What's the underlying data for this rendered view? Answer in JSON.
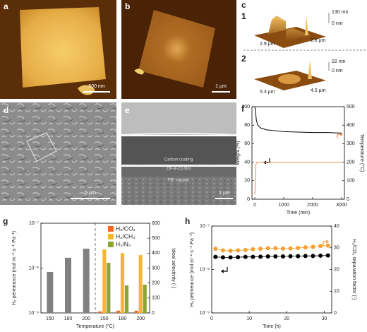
{
  "image_panels": [
    {
      "label": "a",
      "scale_bar": "500 nm"
    },
    {
      "label": "b",
      "scale_bar": "1 µm"
    },
    {
      "label": "c",
      "insets": [
        {
          "number": "1",
          "height_max": "130 nm",
          "height_min": "0 nm",
          "width_x": "2.9 µm",
          "width_y": "2.8 µm"
        },
        {
          "number": "2",
          "height_max": "22 nm",
          "height_min": "0 nm",
          "width_x": "5.3 µm",
          "width_y": "4.5 µm"
        }
      ]
    },
    {
      "label": "d",
      "scale_bar": "5 µm"
    },
    {
      "label": "e",
      "layers": [
        "Carbon coating",
        "ZIF-8-Co film",
        "PBI support"
      ],
      "scale_bar": "1 µm"
    }
  ],
  "chart_data": [
    {
      "type": "line",
      "label": "f",
      "xlabel": "Time (min)",
      "ylabel": "Weight (%)",
      "y2label": "Temperature (°C)",
      "xlim": [
        -100,
        3100
      ],
      "xticks": [
        0,
        1000,
        2000,
        3000
      ],
      "ylim": [
        0,
        100
      ],
      "yticks": [
        0,
        20,
        40,
        60,
        80,
        100
      ],
      "y2lim": [
        0,
        500
      ],
      "y2ticks": [
        0,
        100,
        200,
        300,
        400,
        500
      ],
      "series": [
        {
          "color": "#000000",
          "x": [
            0,
            20,
            50,
            100,
            200,
            400,
            700,
            1000,
            1500,
            2000,
            2500,
            3000
          ],
          "values": [
            100,
            96,
            86,
            80,
            77,
            75,
            74,
            73,
            72.5,
            72,
            72,
            71.5
          ]
        },
        {
          "color": "#f08a4b",
          "axis": "y2",
          "x": [
            0,
            40,
            60,
            3000
          ],
          "values": [
            25,
            190,
            200,
            200
          ]
        }
      ]
    },
    {
      "type": "bar",
      "label": "g",
      "xlabel": "Temperature (°C)",
      "ylabel": "H₂ permeance (mol m⁻²·s⁻¹·Pa⁻¹)",
      "y2label": "Ideal selectivity (-)",
      "categories": [
        "150",
        "180",
        "200",
        "150",
        "180",
        "200"
      ],
      "ylog": true,
      "ylim": [
        1e-09,
        1e-07
      ],
      "yticks": [
        {
          "value": 1e-09,
          "label": "10⁻⁹"
        },
        {
          "value": 1e-08,
          "label": "10⁻⁸"
        },
        {
          "value": 1e-07,
          "label": "10⁻⁷"
        }
      ],
      "y2lim": [
        0,
        600
      ],
      "y2ticks": [
        0,
        100,
        200,
        300,
        400,
        500,
        600
      ],
      "values": [
        8.2e-09,
        1.7e-08,
        2.7e-08,
        null,
        null,
        null
      ],
      "color": "#808080",
      "series": [
        {
          "name": "H₂/CO₂",
          "color": "#f06a1e",
          "axis": "y2",
          "values": [
            null,
            null,
            null,
            10,
            15,
            15
          ]
        },
        {
          "name": "H₂/CH₄",
          "color": "#f5b632",
          "axis": "y2",
          "values": [
            null,
            null,
            null,
            425,
            400,
            387
          ]
        },
        {
          "name": "H₂/N₂",
          "color": "#8aa62c",
          "axis": "y2",
          "values": [
            null,
            null,
            null,
            335,
            184,
            189
          ]
        }
      ]
    },
    {
      "type": "scatter",
      "label": "h",
      "xlabel": "Time (h)",
      "ylabel": "H₂ permeance (mol m⁻²·s⁻¹·Pa⁻¹)",
      "y2label": "H₂/CO₂ separation factor (-)",
      "x": [
        1,
        3,
        5,
        7,
        9,
        11,
        13,
        15,
        17,
        19,
        21,
        23,
        25,
        27,
        29,
        31
      ],
      "xlim": [
        0,
        32
      ],
      "xticks": [
        0,
        10,
        20,
        30
      ],
      "ylog": true,
      "ylim": [
        1e-09,
        1e-07
      ],
      "yticks": [
        {
          "value": 1e-09,
          "label": "10⁻⁹"
        },
        {
          "value": 1e-08,
          "label": "10⁻⁸"
        },
        {
          "value": 1e-07,
          "label": "10⁻⁷"
        }
      ],
      "y2lim": [
        0,
        40
      ],
      "y2ticks": [
        0,
        10,
        20,
        30,
        40
      ],
      "series": [
        {
          "color": "#000000",
          "values": [
            1.95e-08,
            1.9e-08,
            1.9e-08,
            1.92e-08,
            1.95e-08,
            1.95e-08,
            1.97e-08,
            2e-08,
            2e-08,
            2e-08,
            2.02e-08,
            2.03e-08,
            2.05e-08,
            2.05e-08,
            2.08e-08,
            2.1e-08
          ]
        },
        {
          "color": "#f5a030",
          "axis": "y2",
          "values": [
            29.5,
            28.8,
            28.6,
            28.8,
            29.0,
            29.3,
            29.5,
            29.8,
            29.8,
            29.6,
            29.7,
            29.9,
            30.2,
            30.4,
            30.8,
            31.0
          ]
        }
      ]
    }
  ]
}
